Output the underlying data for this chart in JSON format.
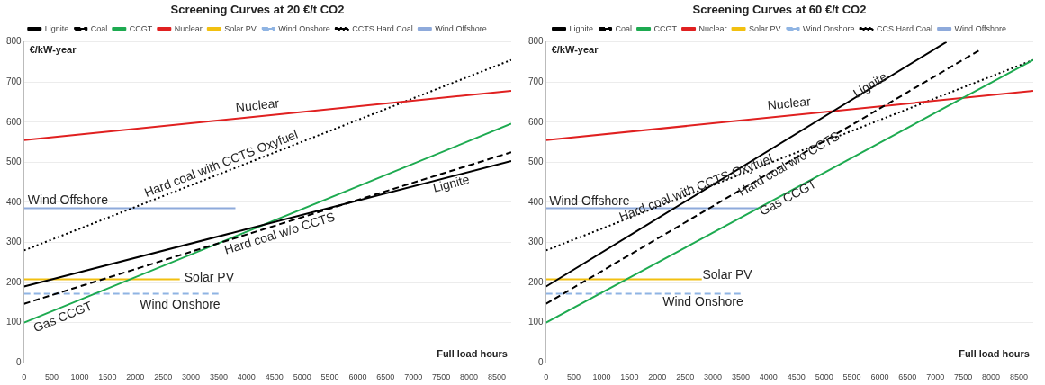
{
  "chart_data": [
    {
      "type": "line",
      "title": "Screening Curves at 20 €/t CO2",
      "xlabel": "Full load hours",
      "ylabel": "€/kW-year",
      "xlim": [
        0,
        8760
      ],
      "xticks": [
        0,
        500,
        1000,
        1500,
        2000,
        2500,
        3000,
        3500,
        4000,
        4500,
        5000,
        5500,
        6000,
        6500,
        7000,
        7500,
        8000,
        8500
      ],
      "ylim": [
        0,
        800
      ],
      "yticks": [
        0,
        100,
        200,
        300,
        400,
        500,
        600,
        700,
        800
      ],
      "grid": "y",
      "legend": "top",
      "marker": "none",
      "series": [
        {
          "name": "Lignite",
          "color": "#000000",
          "line_style": "solid",
          "x": [
            0,
            8760
          ],
          "values": [
            190,
            503
          ]
        },
        {
          "name": "Coal",
          "color": "#000000",
          "line_style": "dashed",
          "x": [
            0,
            8760
          ],
          "values": [
            147,
            525
          ]
        },
        {
          "name": "CCGT",
          "color": "#1daa50",
          "line_style": "solid",
          "x": [
            0,
            8760
          ],
          "values": [
            100,
            596
          ]
        },
        {
          "name": "Nuclear",
          "color": "#e02020",
          "line_style": "solid",
          "x": [
            0,
            8760
          ],
          "values": [
            555,
            678
          ]
        },
        {
          "name": "Solar PV",
          "color": "#f2c010",
          "line_style": "solid",
          "x": [
            0,
            2800
          ],
          "values": [
            208,
            208
          ]
        },
        {
          "name": "Wind Onshore",
          "color": "#8fb4e3",
          "line_style": "dashed",
          "x": [
            0,
            3500
          ],
          "values": [
            172,
            172
          ]
        },
        {
          "name": "CCTS Hard Coal",
          "color": "#000000",
          "line_style": "dotted",
          "x": [
            0,
            8760
          ],
          "values": [
            280,
            755
          ]
        },
        {
          "name": "Wind Offshore",
          "color": "#8eaadb",
          "line_style": "solid",
          "x": [
            0,
            3800
          ],
          "values": [
            385,
            385
          ]
        }
      ],
      "annotations": [
        "Nuclear",
        "Hard coal with CCTS Oxyfuel",
        "Lignite",
        "Hard coal w/o CCTS",
        "Wind Offshore",
        "Solar PV",
        "Wind Onshore",
        "Gas CCGT"
      ]
    },
    {
      "type": "line",
      "title": "Screening Curves at 60 €/t CO2",
      "xlabel": "Full load hours",
      "ylabel": "€/kW-year",
      "xlim": [
        0,
        8760
      ],
      "xticks": [
        0,
        500,
        1000,
        1500,
        2000,
        2500,
        3000,
        3500,
        4000,
        4500,
        5000,
        5500,
        6000,
        6500,
        7000,
        7500,
        8000,
        8500
      ],
      "ylim": [
        0,
        800
      ],
      "yticks": [
        0,
        100,
        200,
        300,
        400,
        500,
        600,
        700,
        800
      ],
      "grid": "y",
      "legend": "top",
      "marker": "none",
      "series": [
        {
          "name": "Lignite",
          "color": "#000000",
          "line_style": "solid",
          "x": [
            0,
            7200
          ],
          "values": [
            190,
            800
          ]
        },
        {
          "name": "Coal",
          "color": "#000000",
          "line_style": "dashed",
          "x": [
            0,
            7800
          ],
          "values": [
            147,
            780
          ]
        },
        {
          "name": "CCGT",
          "color": "#1daa50",
          "line_style": "solid",
          "x": [
            0,
            8760
          ],
          "values": [
            100,
            755
          ]
        },
        {
          "name": "Nuclear",
          "color": "#e02020",
          "line_style": "solid",
          "x": [
            0,
            8760
          ],
          "values": [
            555,
            678
          ]
        },
        {
          "name": "Solar PV",
          "color": "#f2c010",
          "line_style": "solid",
          "x": [
            0,
            2800
          ],
          "values": [
            208,
            208
          ]
        },
        {
          "name": "Wind Onshore",
          "color": "#8fb4e3",
          "line_style": "dashed",
          "x": [
            0,
            3500
          ],
          "values": [
            172,
            172
          ]
        },
        {
          "name": "CCS Hard Coal",
          "color": "#000000",
          "line_style": "dotted",
          "x": [
            0,
            8760
          ],
          "values": [
            280,
            755
          ]
        },
        {
          "name": "Wind Offshore",
          "color": "#8eaadb",
          "line_style": "solid",
          "x": [
            0,
            3800
          ],
          "values": [
            385,
            385
          ]
        }
      ],
      "annotations": [
        "Nuclear",
        "Lignite",
        "Hard coal with CCTS Oxyfuel",
        "Hard coal w/o CCTS",
        "Gas CCGT",
        "Wind Offshore",
        "Solar PV",
        "Wind Onshore"
      ]
    }
  ]
}
